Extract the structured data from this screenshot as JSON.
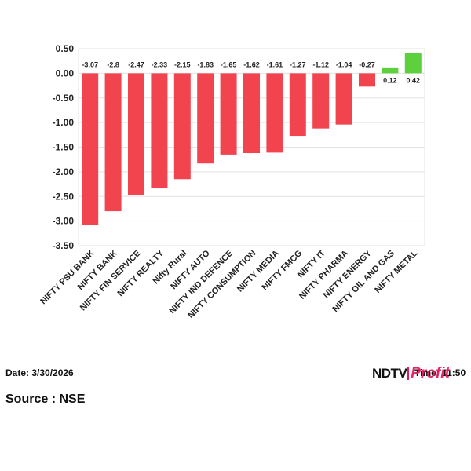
{
  "chart_data": {
    "type": "bar",
    "categories": [
      "NIFTY PSU BANK",
      "NIFTY BANK",
      "NIFTY FIN SERVICE",
      "NIFTY REALTY",
      "Nifty Rural",
      "NIFTY AUTO",
      "NIFTY IND DEFENCE",
      "NIFTY CONSUMPTION",
      "NIFTY MEDIA",
      "NIFTY FMCG",
      "NIFTY IT",
      "NIFTY PHARMA",
      "NIFTY ENERGY",
      "NIFTY OIL AND GAS",
      "NIFTY METAL"
    ],
    "values": [
      -3.07,
      -2.8,
      -2.47,
      -2.33,
      -2.15,
      -1.83,
      -1.65,
      -1.62,
      -1.61,
      -1.27,
      -1.12,
      -1.04,
      -0.27,
      0.12,
      0.42
    ],
    "data_labels": [
      "-3.07",
      "-2.8",
      "-2.47",
      "-2.33",
      "-2.15",
      "-1.83",
      "-1.65",
      "-1.62",
      "-1.61",
      "-1.27",
      "-1.12",
      "-1.04",
      "-0.27",
      "0.12",
      "0.42"
    ],
    "ylim": [
      -3.5,
      0.5
    ],
    "yticks": [
      "0.50",
      "0.00",
      "-0.50",
      "-1.00",
      "-1.50",
      "-2.00",
      "-2.50",
      "-3.00",
      "-3.50"
    ],
    "ytick_values": [
      0.5,
      0.0,
      -0.5,
      -1.0,
      -1.5,
      -2.0,
      -2.5,
      -3.0,
      -3.5
    ],
    "title": "",
    "xlabel": "",
    "ylabel": "",
    "grid": true,
    "colors": {
      "negative": "#f2444f",
      "positive": "#5cd13d",
      "grid": "#e3e3e3"
    }
  },
  "footer": {
    "date": "Date: 3/30/2026",
    "time": "Time: 11:50",
    "source": "Source : NSE",
    "logo_ndtv": "NDTV",
    "logo_profit": "Profit"
  }
}
